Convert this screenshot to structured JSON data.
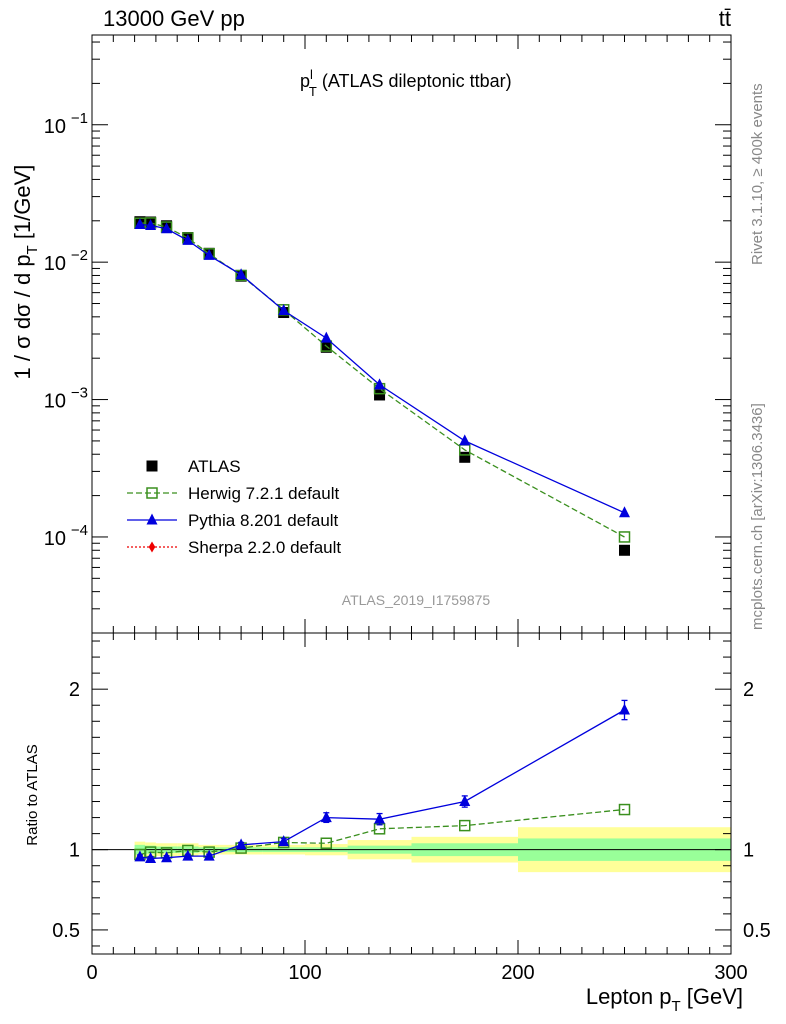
{
  "header": {
    "energy_label": "13000 GeV pp",
    "process_label": "tt̄"
  },
  "side_labels": {
    "rivet": "Rivet 3.1.10, ≥ 400k events",
    "mcplots": "mcplots.cern.ch [arXiv:1306.3436]"
  },
  "chart_data": [
    {
      "type": "line",
      "panel": "main",
      "title": {
        "main": "p",
        "sup": "l",
        "sub": "T",
        "rest": " (ATLAS dileptonic ttbar)"
      },
      "analysis_label": "ATLAS_2019_I1759875",
      "ylabel": {
        "a": "1 / σ  dσ / d p",
        "sub": "T",
        "b": " [1/GeV]"
      },
      "yscale": "log",
      "xlim": [
        0,
        300
      ],
      "ylim": [
        2e-05,
        0.45
      ],
      "yticks": [
        {
          "value": 0.1,
          "base": "10",
          "exp": "−1"
        },
        {
          "value": 0.01,
          "base": "10",
          "exp": "−2"
        },
        {
          "value": 0.001,
          "base": "10",
          "exp": "−3"
        },
        {
          "value": 0.0001,
          "base": "10",
          "exp": "−4"
        }
      ],
      "legend": {
        "placement": "lower-left",
        "entries": [
          {
            "name": "ATLAS",
            "marker": "filled-square",
            "color": "#000000"
          },
          {
            "name": "Herwig 7.2.1 default",
            "marker": "open-square",
            "line": "dashed",
            "color": "#3a8f1e"
          },
          {
            "name": "Pythia 8.201 default",
            "marker": "filled-triangle",
            "line": "solid",
            "color": "#0000dd"
          },
          {
            "name": "Sherpa 2.2.0 default",
            "marker": "filled-diamond",
            "line": "dotted",
            "color": "#ee0000"
          }
        ]
      },
      "series": [
        {
          "name": "ATLAS",
          "x": [
            22.5,
            27.5,
            35,
            45,
            55,
            70,
            90,
            110,
            135,
            175,
            250
          ],
          "y": [
            0.0197,
            0.0196,
            0.0184,
            0.0151,
            0.0116,
            0.0079,
            0.0043,
            0.0024,
            0.00108,
            0.00038,
            8e-05
          ]
        },
        {
          "name": "Herwig 7.2.1 default",
          "x": [
            22.5,
            27.5,
            35,
            45,
            55,
            70,
            90,
            110,
            135,
            175,
            250
          ],
          "y": [
            0.0192,
            0.0193,
            0.018,
            0.015,
            0.0115,
            0.008,
            0.0045,
            0.00245,
            0.0012,
            0.00043,
            0.0001
          ]
        },
        {
          "name": "Pythia 8.201 default",
          "x": [
            22.5,
            27.5,
            35,
            45,
            55,
            70,
            90,
            110,
            135,
            175,
            250
          ],
          "y": [
            0.0188,
            0.0185,
            0.0175,
            0.0144,
            0.0112,
            0.0081,
            0.00445,
            0.0028,
            0.00128,
            0.0005,
            0.00015
          ]
        },
        {
          "name": "Sherpa 2.2.0 default",
          "x": [],
          "y": []
        }
      ]
    },
    {
      "type": "line",
      "panel": "ratio",
      "ylabel": "Ratio to ATLAS",
      "xlabel": {
        "a": "Lepton p",
        "sub": "T",
        "b": " [GeV]"
      },
      "xlim": [
        0,
        300
      ],
      "ylim": [
        0.35,
        2.35
      ],
      "xticks": [
        0,
        100,
        200,
        300
      ],
      "yticks": [
        {
          "value": 0.5,
          "label": "0.5"
        },
        {
          "value": 1,
          "label": "1"
        },
        {
          "value": 2,
          "label": "2"
        }
      ],
      "uncertainty_bands": [
        {
          "x0": 20,
          "x1": 25,
          "inner": [
            0.97,
            1.03
          ],
          "outer": [
            0.95,
            1.05
          ]
        },
        {
          "x0": 25,
          "x1": 30,
          "inner": [
            0.975,
            1.025
          ],
          "outer": [
            0.955,
            1.045
          ]
        },
        {
          "x0": 30,
          "x1": 40,
          "inner": [
            0.98,
            1.02
          ],
          "outer": [
            0.96,
            1.04
          ]
        },
        {
          "x0": 40,
          "x1": 50,
          "inner": [
            0.98,
            1.02
          ],
          "outer": [
            0.96,
            1.04
          ]
        },
        {
          "x0": 50,
          "x1": 60,
          "inner": [
            0.985,
            1.015
          ],
          "outer": [
            0.97,
            1.03
          ]
        },
        {
          "x0": 60,
          "x1": 80,
          "inner": [
            0.985,
            1.015
          ],
          "outer": [
            0.97,
            1.03
          ]
        },
        {
          "x0": 80,
          "x1": 100,
          "inner": [
            0.985,
            1.015
          ],
          "outer": [
            0.97,
            1.03
          ]
        },
        {
          "x0": 100,
          "x1": 120,
          "inner": [
            0.985,
            1.015
          ],
          "outer": [
            0.965,
            1.035
          ]
        },
        {
          "x0": 120,
          "x1": 150,
          "inner": [
            0.975,
            1.025
          ],
          "outer": [
            0.94,
            1.06
          ]
        },
        {
          "x0": 150,
          "x1": 200,
          "inner": [
            0.96,
            1.04
          ],
          "outer": [
            0.92,
            1.08
          ]
        },
        {
          "x0": 200,
          "x1": 300,
          "inner": [
            0.93,
            1.07
          ],
          "outer": [
            0.86,
            1.14
          ]
        }
      ],
      "series": [
        {
          "name": "Herwig 7.2.1 default",
          "x": [
            22.5,
            27.5,
            35,
            45,
            55,
            70,
            90,
            110,
            135,
            175,
            250
          ],
          "y": [
            0.97,
            0.985,
            0.98,
            0.995,
            0.985,
            1.01,
            1.045,
            1.04,
            1.13,
            1.15,
            1.25
          ]
        },
        {
          "name": "Pythia 8.201 default",
          "x": [
            22.5,
            27.5,
            35,
            45,
            55,
            70,
            90,
            110,
            135,
            175,
            250
          ],
          "y": [
            0.955,
            0.945,
            0.95,
            0.96,
            0.96,
            1.03,
            1.05,
            1.2,
            1.19,
            1.3,
            1.87
          ],
          "yerr": [
            0.012,
            0.012,
            0.012,
            0.012,
            0.012,
            0.015,
            0.02,
            0.03,
            0.035,
            0.035,
            0.06
          ]
        }
      ]
    }
  ]
}
